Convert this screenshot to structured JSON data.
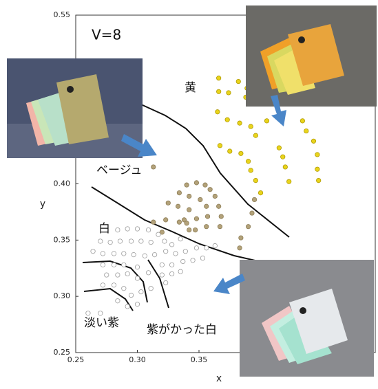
{
  "chart_data": {
    "type": "scatter",
    "annotations": [
      "V=8",
      "黄",
      "ベージュ",
      "白",
      "淡い紫",
      "紫がかった白"
    ],
    "xlabel": "x",
    "ylabel": "y",
    "xlim": [
      0.25,
      0.493
    ],
    "ylim": [
      0.25,
      0.55
    ],
    "xticks": [
      0.25,
      {
        "value": 0.3,
        "label": "0.30"
      },
      0.35
    ],
    "yticks": [
      0.25,
      {
        "value": 0.3,
        "label": "0.30"
      },
      0.35,
      {
        "value": 0.4,
        "label": "0.40"
      },
      0.55
    ],
    "series": [
      {
        "color": "#e9d41c",
        "edgecolor": "#b09a00",
        "x": [
          0.366,
          0.382,
          0.366,
          0.374,
          0.389,
          0.388,
          0.4,
          0.405,
          0.365,
          0.373,
          0.383,
          0.392,
          0.396,
          0.367,
          0.375,
          0.384,
          0.39,
          0.392,
          0.396,
          0.4,
          0.415,
          0.418,
          0.42,
          0.423,
          0.434,
          0.437,
          0.443,
          0.446,
          0.446,
          0.447
        ],
        "y": [
          0.494,
          0.491,
          0.482,
          0.481,
          0.485,
          0.477,
          0.471,
          0.456,
          0.464,
          0.457,
          0.454,
          0.451,
          0.443,
          0.434,
          0.429,
          0.427,
          0.42,
          0.412,
          0.403,
          0.392,
          0.432,
          0.424,
          0.415,
          0.402,
          0.456,
          0.447,
          0.438,
          0.426,
          0.413,
          0.403
        ]
      },
      {
        "color": "#b3a27a",
        "edgecolor": "#8c7c55",
        "x": [
          0.313,
          0.34,
          0.348,
          0.355,
          0.359,
          0.363,
          0.366,
          0.368,
          0.367,
          0.334,
          0.342,
          0.351,
          0.356,
          0.357,
          0.356,
          0.325,
          0.333,
          0.342,
          0.348,
          0.347,
          0.334,
          0.338,
          0.34,
          0.342,
          0.323,
          0.32,
          0.313,
          0.384,
          0.383,
          0.395,
          0.393,
          0.39
        ],
        "y": [
          0.415,
          0.399,
          0.401,
          0.399,
          0.395,
          0.389,
          0.38,
          0.371,
          0.362,
          0.392,
          0.389,
          0.386,
          0.38,
          0.371,
          0.362,
          0.383,
          0.38,
          0.377,
          0.369,
          0.359,
          0.366,
          0.368,
          0.365,
          0.359,
          0.368,
          0.357,
          0.366,
          0.352,
          0.343,
          0.386,
          0.374,
          0.362
        ]
      },
      {
        "color": "#ffffff",
        "edgecolor": "#9a9a9a",
        "x": [
          0.284,
          0.292,
          0.3,
          0.309,
          0.317,
          0.27,
          0.278,
          0.286,
          0.295,
          0.303,
          0.311,
          0.322,
          0.328,
          0.335,
          0.264,
          0.272,
          0.281,
          0.289,
          0.297,
          0.306,
          0.314,
          0.323,
          0.331,
          0.339,
          0.348,
          0.356,
          0.363,
          0.272,
          0.281,
          0.289,
          0.3,
          0.32,
          0.328,
          0.337,
          0.345,
          0.353,
          0.275,
          0.284,
          0.292,
          0.3,
          0.309,
          0.32,
          0.328,
          0.335,
          0.272,
          0.281,
          0.289,
          0.295,
          0.303,
          0.311,
          0.323,
          0.284,
          0.292,
          0.3,
          0.26,
          0.27
        ],
        "y": [
          0.359,
          0.36,
          0.36,
          0.359,
          0.355,
          0.349,
          0.348,
          0.349,
          0.349,
          0.349,
          0.348,
          0.349,
          0.346,
          0.351,
          0.34,
          0.338,
          0.338,
          0.338,
          0.337,
          0.336,
          0.337,
          0.34,
          0.338,
          0.34,
          0.343,
          0.343,
          0.345,
          0.328,
          0.328,
          0.328,
          0.326,
          0.328,
          0.328,
          0.331,
          0.332,
          0.334,
          0.319,
          0.319,
          0.32,
          0.316,
          0.321,
          0.319,
          0.32,
          0.322,
          0.31,
          0.31,
          0.307,
          0.301,
          0.304,
          0.307,
          0.312,
          0.296,
          0.291,
          0.293,
          0.285,
          0.285
        ]
      }
    ]
  }
}
